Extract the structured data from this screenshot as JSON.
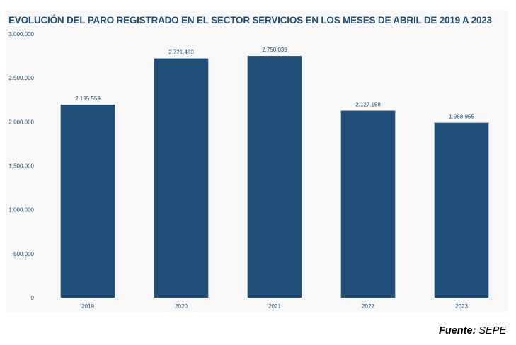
{
  "chart_data": {
    "type": "bar",
    "title": "EVOLUCIÓN DEL PARO REGISTRADO EN EL SECTOR SERVICIOS EN LOS MESES DE ABRIL DE 2019 A 2023",
    "categories": [
      "2019",
      "2020",
      "2021",
      "2022",
      "2023"
    ],
    "values": [
      2195559,
      2721483,
      2750039,
      2127158,
      1988955
    ],
    "value_labels": [
      "2.195.559",
      "2.721.483",
      "2.750.039",
      "2.127.158",
      "1.988.955"
    ],
    "ylim": [
      0,
      3000000
    ],
    "yticks": [
      0,
      500000,
      1000000,
      1500000,
      2000000,
      2500000,
      3000000
    ],
    "ytick_labels": [
      "0",
      "500.000",
      "1.000.000",
      "1.500.000",
      "2.000.000",
      "2.500.000",
      "3.000.000"
    ],
    "bar_color": "#1f4e79",
    "text_color": "#1f4e79",
    "grid": false,
    "legend": false
  },
  "source": {
    "label": "Fuente:",
    "value": "SEPE"
  }
}
